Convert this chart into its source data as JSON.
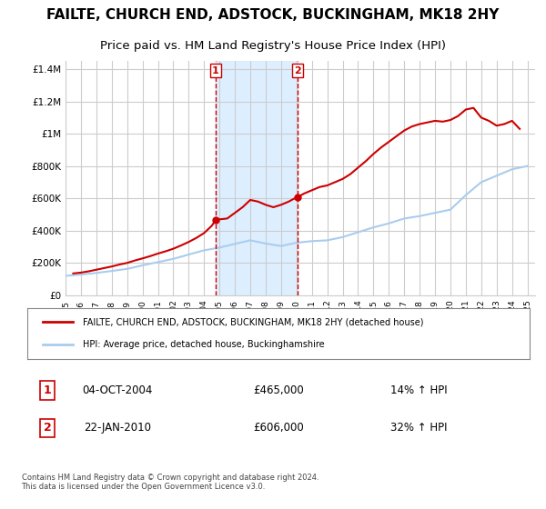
{
  "title": "FAILTE, CHURCH END, ADSTOCK, BUCKINGHAM, MK18 2HY",
  "subtitle": "Price paid vs. HM Land Registry's House Price Index (HPI)",
  "title_fontsize": 11,
  "subtitle_fontsize": 9.5,
  "ylabel_ticks": [
    "£0",
    "£200K",
    "£400K",
    "£600K",
    "£800K",
    "£1M",
    "£1.2M",
    "£1.4M"
  ],
  "ytick_values": [
    0,
    200000,
    400000,
    600000,
    800000,
    1000000,
    1200000,
    1400000
  ],
  "ylim": [
    0,
    1450000
  ],
  "xlim_start": 1995.0,
  "xlim_end": 2025.5,
  "grid_color": "#cccccc",
  "background_color": "#ffffff",
  "plot_bg_color": "#ffffff",
  "legend_label_red": "FAILTE, CHURCH END, ADSTOCK, BUCKINGHAM, MK18 2HY (detached house)",
  "legend_label_blue": "HPI: Average price, detached house, Buckinghamshire",
  "red_color": "#cc0000",
  "blue_color": "#aaccee",
  "sale1_x": 2004.75,
  "sale1_y": 465000,
  "sale1_label": "1",
  "sale1_date": "04-OCT-2004",
  "sale1_price": "£465,000",
  "sale1_hpi": "14% ↑ HPI",
  "sale2_x": 2010.05,
  "sale2_y": 606000,
  "sale2_label": "2",
  "sale2_date": "22-JAN-2010",
  "sale2_price": "£606,000",
  "sale2_hpi": "32% ↑ HPI",
  "shade_color": "#ddeeff",
  "footer_text": "Contains HM Land Registry data © Crown copyright and database right 2024.\nThis data is licensed under the Open Government Licence v3.0.",
  "hpi_years": [
    1995,
    1996,
    1997,
    1998,
    1999,
    2000,
    2001,
    2002,
    2003,
    2004,
    2005,
    2006,
    2007,
    2008,
    2009,
    2010,
    2011,
    2012,
    2013,
    2014,
    2015,
    2016,
    2017,
    2018,
    2019,
    2020,
    2021,
    2022,
    2023,
    2024,
    2025
  ],
  "hpi_values": [
    120000,
    128000,
    138000,
    150000,
    163000,
    185000,
    205000,
    225000,
    252000,
    278000,
    295000,
    318000,
    340000,
    320000,
    305000,
    325000,
    335000,
    340000,
    360000,
    390000,
    420000,
    445000,
    475000,
    490000,
    510000,
    530000,
    620000,
    700000,
    740000,
    780000,
    800000
  ],
  "price_years": [
    1995.5,
    1996.0,
    1996.5,
    1997.0,
    1997.5,
    1998.0,
    1998.5,
    1999.0,
    1999.5,
    2000.0,
    2000.5,
    2001.0,
    2001.5,
    2002.0,
    2002.5,
    2003.0,
    2003.5,
    2004.0,
    2004.5,
    2004.75,
    2005.0,
    2005.5,
    2006.0,
    2006.5,
    2007.0,
    2007.5,
    2008.0,
    2008.5,
    2009.0,
    2009.5,
    2010.0,
    2010.05,
    2010.5,
    2011.0,
    2011.5,
    2012.0,
    2012.5,
    2013.0,
    2013.5,
    2014.0,
    2014.5,
    2015.0,
    2015.5,
    2016.0,
    2016.5,
    2017.0,
    2017.5,
    2018.0,
    2018.5,
    2019.0,
    2019.5,
    2020.0,
    2020.5,
    2021.0,
    2021.5,
    2022.0,
    2022.5,
    2023.0,
    2023.5,
    2024.0,
    2024.5
  ],
  "price_values": [
    135000,
    140000,
    148000,
    158000,
    168000,
    178000,
    190000,
    200000,
    215000,
    228000,
    242000,
    258000,
    272000,
    288000,
    308000,
    330000,
    355000,
    385000,
    430000,
    465000,
    470000,
    475000,
    510000,
    545000,
    590000,
    580000,
    560000,
    545000,
    560000,
    580000,
    606000,
    606000,
    630000,
    650000,
    670000,
    680000,
    700000,
    720000,
    750000,
    790000,
    830000,
    875000,
    915000,
    950000,
    985000,
    1020000,
    1045000,
    1060000,
    1070000,
    1080000,
    1075000,
    1085000,
    1110000,
    1150000,
    1160000,
    1100000,
    1080000,
    1050000,
    1060000,
    1080000,
    1030000
  ]
}
